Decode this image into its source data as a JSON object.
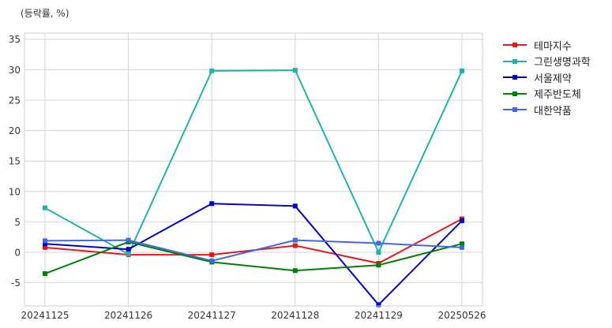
{
  "unit_label": "(등락률, %)",
  "chart_data": {
    "type": "line",
    "title": "",
    "xlabel": "",
    "ylabel": "",
    "categories": [
      "20241125",
      "20241126",
      "20241127",
      "20241128",
      "20241129",
      "20250526"
    ],
    "ylim": [
      -8.8,
      36
    ],
    "yticks": [
      -5,
      0,
      5,
      10,
      15,
      20,
      25,
      30,
      35
    ],
    "grid": true,
    "legend_position": "outside-right",
    "series": [
      {
        "name": "테마지수",
        "color": "#e31a1c",
        "values": [
          0.8,
          -0.4,
          -0.4,
          1.1,
          -1.8,
          5.5
        ]
      },
      {
        "name": "그린생명과학",
        "color": "#20b2aa",
        "values": [
          7.3,
          -0.3,
          29.8,
          29.9,
          0.0,
          29.8
        ]
      },
      {
        "name": "서울제약",
        "color": "#0000cd",
        "values": [
          1.4,
          0.5,
          8.0,
          7.6,
          -8.6,
          5.2
        ]
      },
      {
        "name": "제주반도체",
        "color": "#008000",
        "values": [
          -3.5,
          1.7,
          -1.6,
          -3.0,
          -2.1,
          1.4
        ]
      },
      {
        "name": "대한약품",
        "color": "#4169e1",
        "values": [
          1.9,
          2.0,
          -1.4,
          2.0,
          1.5,
          0.8
        ]
      }
    ]
  }
}
